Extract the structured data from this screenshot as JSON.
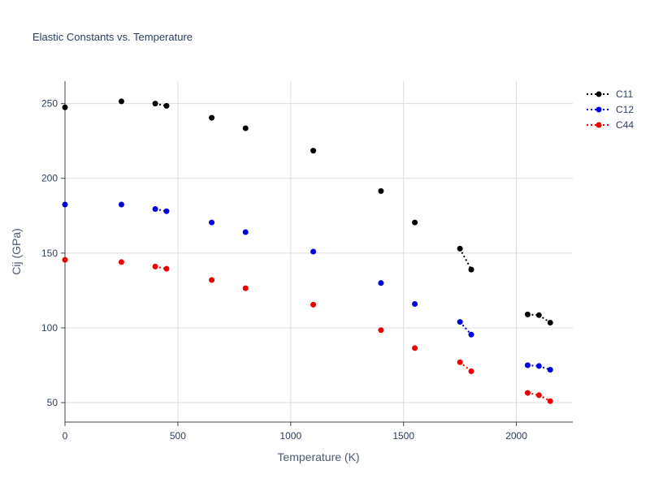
{
  "chart_data": {
    "type": "scatter",
    "title": "Elastic Constants vs. Temperature",
    "xlabel": "Temperature (K)",
    "ylabel": "Cij (GPa)",
    "xlim": [
      0,
      2250
    ],
    "ylim": [
      37,
      265
    ],
    "x_ticks": [
      0,
      500,
      1000,
      1500,
      2000
    ],
    "y_ticks": [
      50,
      100,
      150,
      200,
      250
    ],
    "grid": true,
    "legend_position": "top-right",
    "series": [
      {
        "name": "C11",
        "color": "#000000",
        "x": [
          0,
          250,
          400,
          450,
          650,
          800,
          1100,
          1400,
          1550,
          1750,
          1800,
          2050,
          2100,
          2150
        ],
        "y": [
          247.5,
          251.5,
          250.0,
          248.5,
          240.5,
          233.5,
          218.5,
          191.5,
          170.5,
          153.0,
          139.0,
          109.0,
          108.5,
          103.5
        ],
        "dotted_segments": [
          [
            2,
            3
          ],
          [
            9,
            10
          ],
          [
            11,
            12
          ],
          [
            12,
            13
          ]
        ]
      },
      {
        "name": "C12",
        "color": "#0000dd",
        "x": [
          0,
          250,
          400,
          450,
          650,
          800,
          1100,
          1400,
          1550,
          1750,
          1800,
          2050,
          2100,
          2150
        ],
        "y": [
          182.5,
          182.5,
          179.5,
          178.0,
          170.5,
          164.0,
          151.0,
          130.0,
          116.0,
          104.0,
          95.5,
          75.0,
          74.5,
          72.0
        ],
        "dotted_segments": [
          [
            2,
            3
          ],
          [
            9,
            10
          ],
          [
            11,
            12
          ],
          [
            12,
            13
          ]
        ]
      },
      {
        "name": "C44",
        "color": "#ee0000",
        "x": [
          0,
          250,
          400,
          450,
          650,
          800,
          1100,
          1400,
          1550,
          1750,
          1800,
          2050,
          2100,
          2150
        ],
        "y": [
          145.5,
          144.0,
          141.0,
          139.5,
          132.0,
          126.5,
          115.5,
          98.5,
          86.5,
          77.0,
          71.0,
          56.5,
          55.0,
          51.0
        ],
        "dotted_segments": [
          [
            2,
            3
          ],
          [
            9,
            10
          ],
          [
            11,
            12
          ],
          [
            12,
            13
          ]
        ]
      }
    ]
  }
}
